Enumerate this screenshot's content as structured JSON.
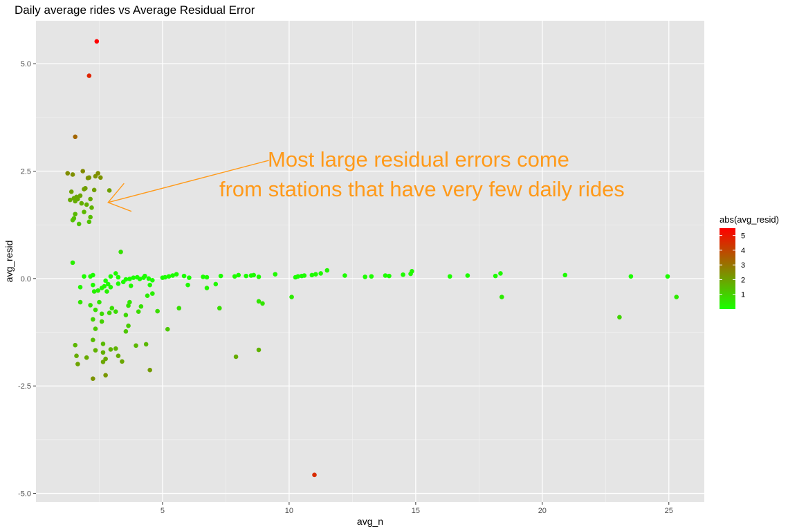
{
  "chart_data": {
    "type": "scatter",
    "title": "Daily average rides vs Average Residual Error",
    "xlabel": "avg_n",
    "ylabel": "avg_resid",
    "xlim": [
      0,
      26.4
    ],
    "ylim": [
      -5.2,
      6.0
    ],
    "x_ticks": [
      5,
      10,
      15,
      20,
      25
    ],
    "x_tick_labels": [
      "5",
      "10",
      "15",
      "20",
      "25"
    ],
    "y_ticks": [
      -5.0,
      -2.5,
      0.0,
      2.5,
      5.0
    ],
    "y_tick_labels": [
      "-5.0",
      "-2.5",
      "0.0",
      "2.5",
      "5.0"
    ],
    "grid": true,
    "panel_background": "#e5e5e5",
    "color_scale": {
      "variable": "abs(avg_resid)",
      "low": 0,
      "high": 5.5,
      "low_color": "#1aff00",
      "high_color": "#ff0000",
      "breaks": [
        1,
        2,
        3,
        4,
        5
      ],
      "break_labels": [
        "1",
        "2",
        "3",
        "4",
        "5"
      ]
    },
    "legend": {
      "title": "abs(avg_resid)",
      "position": "right"
    },
    "annotation": {
      "lines": [
        "Most large residual errors come",
        "from stations that have very few daily rides"
      ],
      "color": "#ff9a1a",
      "arrow_from": [
        9.2,
        2.75
      ],
      "arrow_to": [
        2.85,
        1.77
      ]
    },
    "points": [
      [
        2.4,
        5.52
      ],
      [
        2.1,
        4.72
      ],
      [
        1.55,
        3.3
      ],
      [
        11.0,
        -4.57
      ],
      [
        1.25,
        2.45
      ],
      [
        1.45,
        2.42
      ],
      [
        1.85,
        2.5
      ],
      [
        2.35,
        2.38
      ],
      [
        2.45,
        2.45
      ],
      [
        2.55,
        2.35
      ],
      [
        2.1,
        2.35
      ],
      [
        2.05,
        2.34
      ],
      [
        1.95,
        2.1
      ],
      [
        1.9,
        2.08
      ],
      [
        1.6,
        1.9
      ],
      [
        1.4,
        2.02
      ],
      [
        1.5,
        1.87
      ],
      [
        1.65,
        1.85
      ],
      [
        1.75,
        1.93
      ],
      [
        2.15,
        1.85
      ],
      [
        2.3,
        2.06
      ],
      [
        2.9,
        2.05
      ],
      [
        1.35,
        1.83
      ],
      [
        1.55,
        1.8
      ],
      [
        1.8,
        1.75
      ],
      [
        2.0,
        1.72
      ],
      [
        2.2,
        1.65
      ],
      [
        1.9,
        1.55
      ],
      [
        1.55,
        1.5
      ],
      [
        1.5,
        1.4
      ],
      [
        1.45,
        1.36
      ],
      [
        2.15,
        1.43
      ],
      [
        2.1,
        1.32
      ],
      [
        1.7,
        1.27
      ],
      [
        3.35,
        0.62
      ],
      [
        1.45,
        0.37
      ],
      [
        1.9,
        0.05
      ],
      [
        2.15,
        0.05
      ],
      [
        2.25,
        0.08
      ],
      [
        2.75,
        -0.05
      ],
      [
        2.95,
        0.05
      ],
      [
        3.15,
        0.12
      ],
      [
        3.25,
        0.03
      ],
      [
        3.55,
        -0.02
      ],
      [
        3.7,
        -0.01
      ],
      [
        3.85,
        0.02
      ],
      [
        4.0,
        0.03
      ],
      [
        4.1,
        -0.01
      ],
      [
        4.25,
        0.02
      ],
      [
        4.3,
        0.06
      ],
      [
        4.45,
        0.0
      ],
      [
        4.6,
        -0.04
      ],
      [
        5.0,
        0.02
      ],
      [
        5.1,
        0.03
      ],
      [
        5.25,
        0.05
      ],
      [
        5.4,
        0.07
      ],
      [
        5.55,
        0.1
      ],
      [
        5.85,
        0.06
      ],
      [
        6.05,
        0.02
      ],
      [
        6.6,
        0.04
      ],
      [
        6.75,
        0.03
      ],
      [
        7.3,
        0.06
      ],
      [
        7.85,
        0.05
      ],
      [
        8.0,
        0.08
      ],
      [
        8.3,
        0.06
      ],
      [
        8.5,
        0.07
      ],
      [
        8.6,
        0.08
      ],
      [
        8.8,
        0.04
      ],
      [
        9.45,
        0.1
      ],
      [
        10.25,
        0.03
      ],
      [
        10.35,
        0.05
      ],
      [
        10.5,
        0.06
      ],
      [
        10.6,
        0.07
      ],
      [
        10.9,
        0.08
      ],
      [
        11.05,
        0.1
      ],
      [
        11.25,
        0.12
      ],
      [
        11.5,
        0.19
      ],
      [
        12.2,
        0.07
      ],
      [
        13.0,
        0.04
      ],
      [
        13.25,
        0.05
      ],
      [
        13.8,
        0.07
      ],
      [
        13.95,
        0.06
      ],
      [
        14.5,
        0.09
      ],
      [
        14.8,
        0.11
      ],
      [
        14.85,
        0.17
      ],
      [
        16.35,
        0.05
      ],
      [
        17.05,
        0.07
      ],
      [
        18.15,
        0.06
      ],
      [
        18.35,
        0.12
      ],
      [
        20.9,
        0.08
      ],
      [
        23.5,
        0.05
      ],
      [
        24.95,
        0.05
      ],
      [
        1.75,
        -0.2
      ],
      [
        2.25,
        -0.15
      ],
      [
        2.3,
        -0.3
      ],
      [
        2.45,
        -0.28
      ],
      [
        2.6,
        -0.22
      ],
      [
        2.7,
        -0.18
      ],
      [
        2.85,
        -0.13
      ],
      [
        2.95,
        -0.2
      ],
      [
        2.8,
        -0.3
      ],
      [
        3.25,
        -0.12
      ],
      [
        3.45,
        -0.08
      ],
      [
        3.75,
        -0.17
      ],
      [
        4.5,
        -0.15
      ],
      [
        4.6,
        -0.35
      ],
      [
        6.0,
        -0.15
      ],
      [
        6.75,
        -0.22
      ],
      [
        7.1,
        -0.13
      ],
      [
        10.1,
        -0.43
      ],
      [
        18.4,
        -0.43
      ],
      [
        25.3,
        -0.43
      ],
      [
        1.75,
        -0.55
      ],
      [
        2.15,
        -0.62
      ],
      [
        2.35,
        -0.73
      ],
      [
        2.5,
        -0.55
      ],
      [
        2.6,
        -0.82
      ],
      [
        2.9,
        -0.8
      ],
      [
        3.0,
        -0.69
      ],
      [
        3.15,
        -0.77
      ],
      [
        3.65,
        -0.63
      ],
      [
        3.55,
        -0.85
      ],
      [
        3.7,
        -0.55
      ],
      [
        4.05,
        -0.77
      ],
      [
        4.15,
        -0.65
      ],
      [
        4.4,
        -0.4
      ],
      [
        4.8,
        -0.76
      ],
      [
        5.65,
        -0.69
      ],
      [
        7.25,
        -0.69
      ],
      [
        8.8,
        -0.53
      ],
      [
        8.95,
        -0.58
      ],
      [
        23.05,
        -0.9
      ],
      [
        2.25,
        -0.95
      ],
      [
        2.6,
        -1.0
      ],
      [
        3.65,
        -1.1
      ],
      [
        3.55,
        -1.23
      ],
      [
        5.2,
        -1.18
      ],
      [
        2.35,
        -1.17
      ],
      [
        1.55,
        -1.55
      ],
      [
        1.6,
        -1.8
      ],
      [
        1.65,
        -1.99
      ],
      [
        2.0,
        -1.84
      ],
      [
        2.25,
        -1.43
      ],
      [
        2.35,
        -1.67
      ],
      [
        2.65,
        -1.52
      ],
      [
        2.65,
        -1.72
      ],
      [
        2.75,
        -1.87
      ],
      [
        2.95,
        -1.65
      ],
      [
        3.15,
        -1.63
      ],
      [
        3.25,
        -1.8
      ],
      [
        3.4,
        -1.93
      ],
      [
        3.95,
        -1.56
      ],
      [
        4.35,
        -1.53
      ],
      [
        7.9,
        -1.82
      ],
      [
        8.8,
        -1.66
      ],
      [
        2.25,
        -2.33
      ],
      [
        2.65,
        -1.94
      ],
      [
        2.75,
        -2.25
      ],
      [
        4.5,
        -2.13
      ]
    ]
  }
}
